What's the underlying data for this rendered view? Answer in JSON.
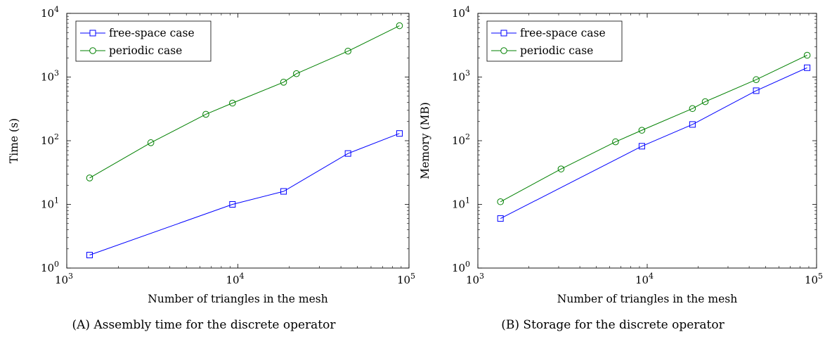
{
  "chart_data": [
    {
      "type": "line",
      "xscale": "log",
      "yscale": "log",
      "xlim": [
        1000,
        100000
      ],
      "ylim": [
        1,
        10000
      ],
      "xticks": [
        {
          "base": "10",
          "exp": "3"
        },
        {
          "base": "10",
          "exp": "4"
        },
        {
          "base": "10",
          "exp": "5"
        }
      ],
      "yticks": [
        {
          "base": "10",
          "exp": "0"
        },
        {
          "base": "10",
          "exp": "1"
        },
        {
          "base": "10",
          "exp": "2"
        },
        {
          "base": "10",
          "exp": "3"
        },
        {
          "base": "10",
          "exp": "4"
        }
      ],
      "xlabel": "Number of triangles in the mesh",
      "ylabel": "Time (s)",
      "caption_tag": "(A)",
      "caption": "Assembly time for the discrete operator",
      "legend_position": "top-left",
      "series": [
        {
          "name": "free-space case",
          "color": "#0000ff",
          "marker": "square",
          "x": [
            1360,
            9300,
            18500,
            44000,
            88000
          ],
          "y": [
            1.6,
            10,
            16,
            63,
            130
          ]
        },
        {
          "name": "periodic case",
          "color": "#008000",
          "marker": "circle",
          "x": [
            1360,
            3100,
            6500,
            9300,
            18500,
            22000,
            44000,
            88000
          ],
          "y": [
            26,
            93,
            260,
            390,
            830,
            1130,
            2550,
            6400
          ]
        }
      ]
    },
    {
      "type": "line",
      "xscale": "log",
      "yscale": "log",
      "xlim": [
        1000,
        100000
      ],
      "ylim": [
        1,
        10000
      ],
      "xticks": [
        {
          "base": "10",
          "exp": "3"
        },
        {
          "base": "10",
          "exp": "4"
        },
        {
          "base": "10",
          "exp": "5"
        }
      ],
      "yticks": [
        {
          "base": "10",
          "exp": "0"
        },
        {
          "base": "10",
          "exp": "1"
        },
        {
          "base": "10",
          "exp": "2"
        },
        {
          "base": "10",
          "exp": "3"
        },
        {
          "base": "10",
          "exp": "4"
        }
      ],
      "xlabel": "Number of triangles in the mesh",
      "ylabel": "Memory (MB)",
      "caption_tag": "(B)",
      "caption": "Storage for the discrete operator",
      "legend_position": "top-left",
      "series": [
        {
          "name": "free-space case",
          "color": "#0000ff",
          "marker": "square",
          "x": [
            1360,
            9300,
            18500,
            44000,
            88000
          ],
          "y": [
            6,
            82,
            180,
            610,
            1400
          ]
        },
        {
          "name": "periodic case",
          "color": "#008000",
          "marker": "circle",
          "x": [
            1360,
            3100,
            6500,
            9300,
            18500,
            22000,
            44000,
            88000
          ],
          "y": [
            11,
            36,
            96,
            146,
            320,
            410,
            910,
            2200
          ]
        }
      ]
    }
  ]
}
